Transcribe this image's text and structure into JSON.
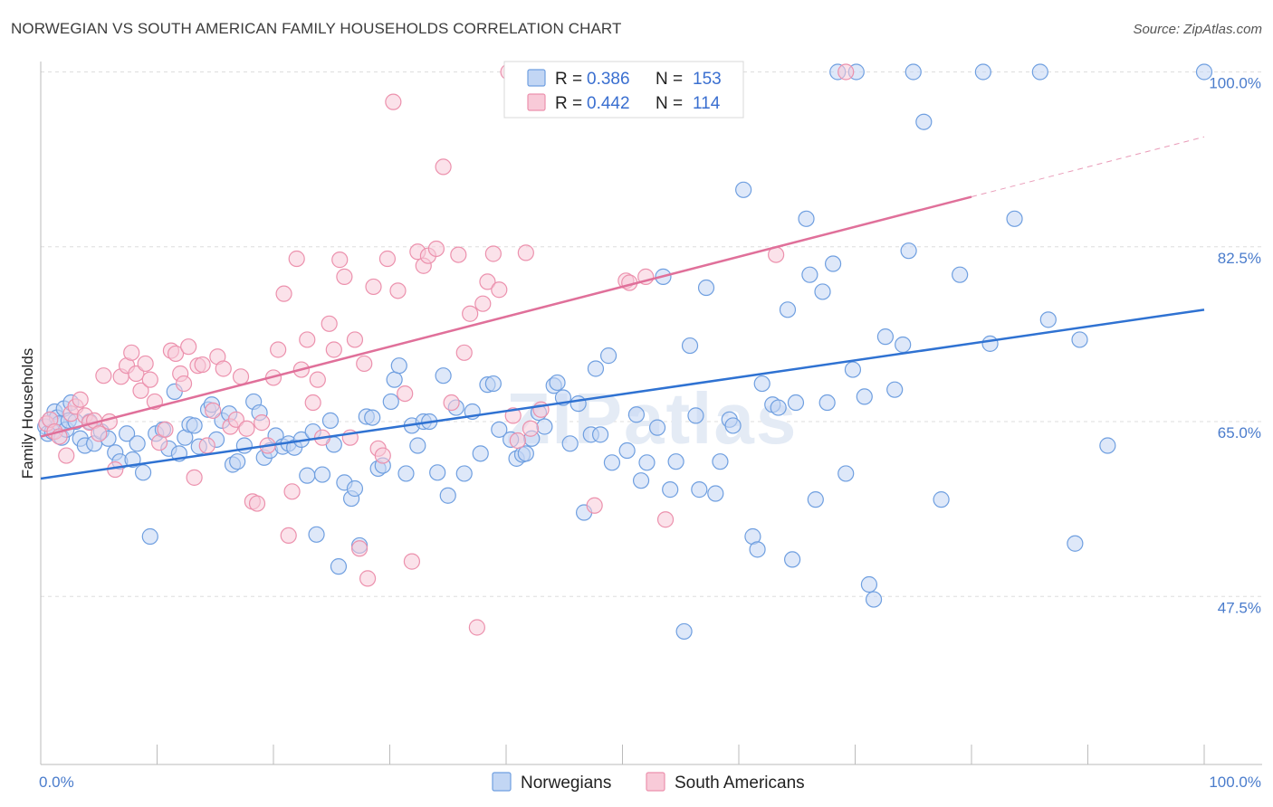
{
  "title": "NORWEGIAN VS SOUTH AMERICAN FAMILY HOUSEHOLDS CORRELATION CHART",
  "source": "Source: ZipAtlas.com",
  "chart_data": {
    "type": "scatter",
    "ylabel": "Family Households",
    "xlim": [
      0,
      100
    ],
    "ylim": [
      30.5,
      102
    ],
    "x_tick_labels": [
      "0.0%",
      "100.0%"
    ],
    "y_ticks": [
      {
        "value": 100,
        "label": "100.0%"
      },
      {
        "value": 82.5,
        "label": "82.5%"
      },
      {
        "value": 65,
        "label": "65.0%"
      },
      {
        "value": 47.5,
        "label": "47.5%"
      }
    ],
    "grid": "horizontal dashed",
    "watermark": "ZIPatlas",
    "legend_box": [
      {
        "r_label": "R =",
        "r_value": "0.386",
        "n_label": "N =",
        "n_value": "153"
      },
      {
        "r_label": "R =",
        "r_value": "0.442",
        "n_label": "N =",
        "n_value": "114"
      }
    ],
    "series": [
      {
        "name": "Norwegians",
        "color": "#6f9fe0",
        "fill": "#c2d6f4",
        "line_color": "#2f72d2",
        "trend": {
          "x0": 0,
          "y0": 59.3,
          "x1": 100,
          "y1": 76.2,
          "dash_from": null
        },
        "points": [
          [
            0.4,
            64.5
          ],
          [
            0.6,
            63.8
          ],
          [
            0.8,
            65.2
          ],
          [
            1.0,
            64.0
          ],
          [
            1.2,
            66.0
          ],
          [
            1.4,
            65.4
          ],
          [
            1.6,
            64.8
          ],
          [
            1.8,
            63.4
          ],
          [
            2.0,
            66.3
          ],
          [
            2.2,
            64.2
          ],
          [
            2.4,
            65.1
          ],
          [
            2.6,
            66.9
          ],
          [
            3.0,
            65.0
          ],
          [
            3.4,
            63.3
          ],
          [
            3.8,
            62.6
          ],
          [
            4.2,
            65.0
          ],
          [
            4.6,
            62.8
          ],
          [
            5.2,
            64.0
          ],
          [
            5.8,
            63.3
          ],
          [
            6.4,
            61.9
          ],
          [
            6.8,
            61.0
          ],
          [
            7.4,
            63.8
          ],
          [
            7.9,
            61.2
          ],
          [
            8.3,
            62.8
          ],
          [
            8.8,
            59.9
          ],
          [
            9.4,
            53.5
          ],
          [
            9.9,
            63.8
          ],
          [
            10.5,
            64.2
          ],
          [
            11.0,
            62.3
          ],
          [
            11.5,
            68.0
          ],
          [
            11.9,
            61.8
          ],
          [
            12.4,
            63.4
          ],
          [
            12.8,
            64.7
          ],
          [
            13.2,
            64.6
          ],
          [
            13.6,
            62.5
          ],
          [
            14.4,
            66.2
          ],
          [
            14.7,
            66.7
          ],
          [
            15.1,
            63.2
          ],
          [
            15.6,
            65.1
          ],
          [
            16.2,
            65.8
          ],
          [
            16.5,
            60.7
          ],
          [
            16.9,
            61.0
          ],
          [
            17.5,
            62.6
          ],
          [
            18.3,
            67.0
          ],
          [
            18.8,
            65.9
          ],
          [
            19.2,
            61.4
          ],
          [
            19.7,
            62.1
          ],
          [
            20.2,
            63.6
          ],
          [
            20.8,
            62.5
          ],
          [
            21.3,
            62.8
          ],
          [
            21.8,
            62.4
          ],
          [
            22.4,
            63.2
          ],
          [
            22.9,
            59.6
          ],
          [
            23.4,
            64.0
          ],
          [
            23.7,
            53.7
          ],
          [
            24.2,
            59.7
          ],
          [
            24.9,
            65.1
          ],
          [
            25.2,
            62.7
          ],
          [
            25.6,
            50.5
          ],
          [
            26.1,
            58.9
          ],
          [
            26.7,
            57.3
          ],
          [
            27.0,
            58.3
          ],
          [
            27.4,
            52.6
          ],
          [
            28.0,
            65.5
          ],
          [
            28.5,
            65.4
          ],
          [
            29.0,
            60.3
          ],
          [
            29.4,
            60.6
          ],
          [
            30.1,
            67.0
          ],
          [
            30.4,
            69.2
          ],
          [
            30.8,
            70.6
          ],
          [
            31.4,
            59.8
          ],
          [
            31.9,
            64.6
          ],
          [
            32.4,
            62.6
          ],
          [
            32.9,
            65.0
          ],
          [
            33.4,
            65.0
          ],
          [
            34.1,
            59.9
          ],
          [
            34.6,
            69.6
          ],
          [
            35.0,
            57.6
          ],
          [
            35.7,
            66.4
          ],
          [
            36.4,
            59.8
          ],
          [
            37.1,
            66.0
          ],
          [
            37.8,
            61.8
          ],
          [
            38.4,
            68.7
          ],
          [
            38.9,
            68.8
          ],
          [
            39.4,
            64.2
          ],
          [
            40.4,
            63.2
          ],
          [
            40.9,
            61.3
          ],
          [
            41.4,
            61.7
          ],
          [
            41.7,
            61.8
          ],
          [
            42.2,
            63.3
          ],
          [
            42.8,
            65.9
          ],
          [
            43.3,
            64.5
          ],
          [
            44.1,
            68.6
          ],
          [
            44.4,
            68.9
          ],
          [
            44.9,
            67.4
          ],
          [
            45.5,
            62.8
          ],
          [
            46.2,
            66.8
          ],
          [
            46.7,
            55.9
          ],
          [
            47.3,
            63.7
          ],
          [
            47.7,
            70.3
          ],
          [
            48.1,
            63.7
          ],
          [
            48.8,
            71.6
          ],
          [
            49.1,
            60.9
          ],
          [
            50.4,
            62.1
          ],
          [
            51.2,
            65.7
          ],
          [
            51.6,
            59.1
          ],
          [
            52.1,
            60.9
          ],
          [
            53.0,
            64.4
          ],
          [
            53.5,
            79.5
          ],
          [
            54.1,
            58.2
          ],
          [
            54.6,
            61.0
          ],
          [
            55.3,
            44.0
          ],
          [
            55.8,
            72.6
          ],
          [
            56.3,
            65.6
          ],
          [
            56.6,
            58.2
          ],
          [
            57.2,
            78.4
          ],
          [
            58.0,
            57.8
          ],
          [
            58.4,
            61.0
          ],
          [
            59.2,
            65.2
          ],
          [
            59.5,
            64.6
          ],
          [
            60.4,
            88.2
          ],
          [
            61.2,
            53.5
          ],
          [
            61.6,
            52.2
          ],
          [
            62.0,
            68.8
          ],
          [
            62.9,
            66.7
          ],
          [
            63.4,
            66.4
          ],
          [
            64.2,
            76.2
          ],
          [
            64.6,
            51.2
          ],
          [
            64.9,
            66.9
          ],
          [
            65.8,
            85.3
          ],
          [
            66.1,
            79.7
          ],
          [
            66.6,
            57.2
          ],
          [
            67.2,
            78.0
          ],
          [
            67.6,
            66.9
          ],
          [
            68.1,
            80.8
          ],
          [
            68.5,
            100.0
          ],
          [
            69.2,
            59.8
          ],
          [
            69.8,
            70.2
          ],
          [
            70.1,
            100.0
          ],
          [
            70.8,
            67.5
          ],
          [
            71.2,
            48.7
          ],
          [
            71.6,
            47.2
          ],
          [
            72.6,
            73.5
          ],
          [
            73.4,
            68.2
          ],
          [
            74.1,
            72.7
          ],
          [
            74.6,
            82.1
          ],
          [
            75.0,
            100.0
          ],
          [
            75.9,
            95.0
          ],
          [
            77.4,
            57.2
          ],
          [
            79.0,
            79.7
          ],
          [
            81.0,
            100.0
          ],
          [
            81.6,
            72.8
          ],
          [
            83.7,
            85.3
          ],
          [
            85.9,
            100.0
          ],
          [
            86.6,
            75.2
          ],
          [
            88.9,
            52.8
          ],
          [
            89.3,
            73.2
          ],
          [
            91.7,
            62.6
          ],
          [
            100.0,
            100.0
          ]
        ]
      },
      {
        "name": "South Americans",
        "color": "#ec91ad",
        "fill": "#f8cad8",
        "line_color": "#e0709a",
        "trend": {
          "x0": 0,
          "y0": 63.5,
          "x1": 100,
          "y1": 93.5,
          "dash_from": 80
        },
        "points": [
          [
            0.5,
            64.8
          ],
          [
            0.8,
            65.2
          ],
          [
            1.2,
            64.0
          ],
          [
            1.6,
            63.5
          ],
          [
            2.2,
            61.6
          ],
          [
            2.6,
            65.8
          ],
          [
            3.0,
            66.5
          ],
          [
            3.4,
            67.2
          ],
          [
            3.8,
            65.6
          ],
          [
            4.2,
            64.9
          ],
          [
            4.6,
            65.1
          ],
          [
            5.0,
            63.8
          ],
          [
            5.4,
            69.6
          ],
          [
            5.9,
            65.0
          ],
          [
            6.4,
            60.2
          ],
          [
            6.9,
            69.5
          ],
          [
            7.4,
            70.6
          ],
          [
            7.8,
            71.9
          ],
          [
            8.2,
            69.8
          ],
          [
            8.6,
            68.1
          ],
          [
            9.0,
            70.8
          ],
          [
            9.4,
            69.2
          ],
          [
            9.8,
            67.0
          ],
          [
            10.2,
            62.9
          ],
          [
            10.7,
            64.2
          ],
          [
            11.2,
            72.1
          ],
          [
            11.6,
            71.8
          ],
          [
            12.0,
            69.8
          ],
          [
            12.3,
            68.8
          ],
          [
            12.7,
            72.5
          ],
          [
            13.2,
            59.4
          ],
          [
            13.5,
            70.6
          ],
          [
            13.9,
            70.7
          ],
          [
            14.3,
            62.6
          ],
          [
            14.8,
            66.1
          ],
          [
            15.2,
            71.5
          ],
          [
            15.7,
            70.3
          ],
          [
            16.3,
            64.5
          ],
          [
            16.8,
            65.2
          ],
          [
            17.2,
            69.5
          ],
          [
            17.7,
            64.3
          ],
          [
            18.2,
            57.0
          ],
          [
            18.6,
            56.8
          ],
          [
            19.0,
            64.9
          ],
          [
            19.5,
            62.6
          ],
          [
            20.0,
            69.4
          ],
          [
            20.4,
            72.2
          ],
          [
            20.9,
            77.8
          ],
          [
            21.3,
            53.6
          ],
          [
            21.6,
            58.0
          ],
          [
            22.0,
            81.3
          ],
          [
            22.4,
            70.2
          ],
          [
            22.9,
            73.2
          ],
          [
            23.4,
            66.9
          ],
          [
            23.8,
            69.2
          ],
          [
            24.2,
            63.4
          ],
          [
            24.8,
            74.8
          ],
          [
            25.2,
            72.2
          ],
          [
            25.7,
            81.2
          ],
          [
            26.1,
            79.5
          ],
          [
            26.6,
            63.4
          ],
          [
            27.0,
            73.2
          ],
          [
            27.4,
            52.3
          ],
          [
            27.8,
            70.8
          ],
          [
            28.1,
            49.3
          ],
          [
            28.6,
            78.5
          ],
          [
            29.0,
            62.3
          ],
          [
            29.4,
            61.6
          ],
          [
            29.8,
            81.3
          ],
          [
            30.3,
            97.0
          ],
          [
            30.7,
            78.1
          ],
          [
            31.3,
            67.8
          ],
          [
            31.9,
            51.0
          ],
          [
            32.4,
            82.0
          ],
          [
            32.9,
            80.6
          ],
          [
            33.3,
            81.6
          ],
          [
            34.0,
            82.3
          ],
          [
            34.6,
            90.5
          ],
          [
            35.3,
            66.9
          ],
          [
            35.9,
            81.7
          ],
          [
            36.4,
            71.9
          ],
          [
            36.9,
            75.8
          ],
          [
            37.5,
            44.4
          ],
          [
            38.0,
            76.8
          ],
          [
            38.4,
            79.0
          ],
          [
            38.9,
            81.8
          ],
          [
            39.4,
            78.2
          ],
          [
            40.2,
            100.0
          ],
          [
            40.6,
            65.6
          ],
          [
            41.0,
            63.1
          ],
          [
            41.7,
            81.9
          ],
          [
            42.1,
            64.3
          ],
          [
            43.0,
            66.2
          ],
          [
            47.6,
            56.6
          ],
          [
            50.3,
            79.1
          ],
          [
            50.6,
            78.9
          ],
          [
            52.0,
            79.5
          ],
          [
            53.7,
            55.2
          ],
          [
            63.2,
            81.7
          ],
          [
            69.2,
            100.0
          ]
        ]
      }
    ]
  },
  "bottom_legend": [
    {
      "label": "Norwegians"
    },
    {
      "label": "South Americans"
    }
  ]
}
